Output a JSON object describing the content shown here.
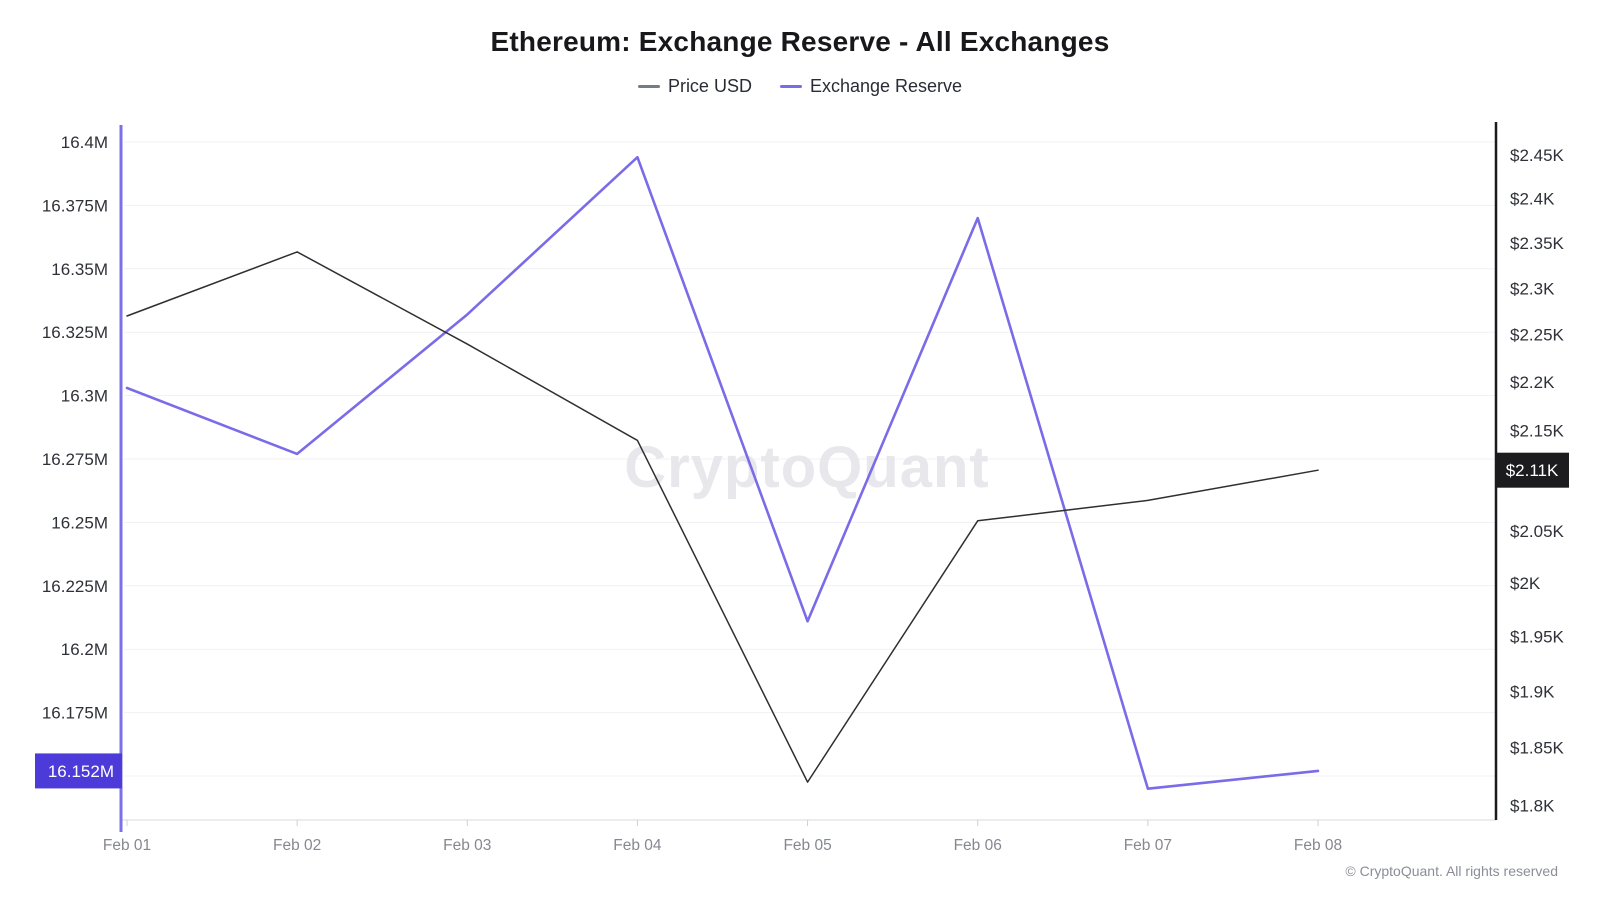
{
  "title": "Ethereum: Exchange Reserve - All Exchanges",
  "legend": [
    {
      "label": "Price USD",
      "color": "#777b82"
    },
    {
      "label": "Exchange Reserve",
      "color": "#7a6be8"
    }
  ],
  "watermark": "CryptoQuant",
  "footer": "© CryptoQuant. All rights reserved",
  "colors": {
    "price_line": "#2f2f33",
    "reserve_line": "#7a6be8",
    "left_axis_line": "#7d70e6",
    "right_axis_line": "#1b1b1f",
    "left_badge_bg": "#4c3bd9",
    "right_badge_bg": "#1c1c1e",
    "badge_text": "#ffffff",
    "gridline": "#f1f1f3",
    "x_axis_line": "#d9dade",
    "tick_mark": "#cfd0d4",
    "axis_label": "#2f3138",
    "x_label": "#85888f",
    "watermark_text": "#e8e8ec"
  },
  "chart_data": {
    "type": "line",
    "categories": [
      "Feb 01",
      "Feb 02",
      "Feb 03",
      "Feb 04",
      "Feb 05",
      "Feb 06",
      "Feb 07",
      "Feb 08"
    ],
    "series": [
      {
        "name": "Price USD",
        "axis": "right",
        "unit": "USD (thousands)",
        "values": [
          2.27,
          2.34,
          2.24,
          2.14,
          1.82,
          2.06,
          2.08,
          2.11
        ]
      },
      {
        "name": "Exchange Reserve",
        "axis": "left",
        "unit": "ETH (millions)",
        "values": [
          16.303,
          16.277,
          16.332,
          16.394,
          16.211,
          16.37,
          16.145,
          16.152
        ]
      }
    ],
    "left_axis": {
      "scale": "linear",
      "ticks": [
        {
          "value": 16.4,
          "label": "16.4M"
        },
        {
          "value": 16.375,
          "label": "16.375M"
        },
        {
          "value": 16.35,
          "label": "16.35M"
        },
        {
          "value": 16.325,
          "label": "16.325M"
        },
        {
          "value": 16.3,
          "label": "16.3M"
        },
        {
          "value": 16.275,
          "label": "16.275M"
        },
        {
          "value": 16.25,
          "label": "16.25M"
        },
        {
          "value": 16.225,
          "label": "16.225M"
        },
        {
          "value": 16.2,
          "label": "16.2M"
        },
        {
          "value": 16.175,
          "label": "16.175M"
        }
      ],
      "extra_gridline_value": 16.15,
      "badge": {
        "value": 16.152,
        "label": "16.152M"
      }
    },
    "right_axis": {
      "scale": "log",
      "ticks": [
        {
          "value": 2.45,
          "label": "$2.45K"
        },
        {
          "value": 2.4,
          "label": "$2.4K"
        },
        {
          "value": 2.35,
          "label": "$2.35K"
        },
        {
          "value": 2.3,
          "label": "$2.3K"
        },
        {
          "value": 2.25,
          "label": "$2.25K"
        },
        {
          "value": 2.2,
          "label": "$2.2K"
        },
        {
          "value": 2.15,
          "label": "$2.15K"
        },
        {
          "value": 2.1,
          "label": "$2.1K"
        },
        {
          "value": 2.05,
          "label": "$2.05K"
        },
        {
          "value": 2.0,
          "label": "$2K"
        },
        {
          "value": 1.95,
          "label": "$1.95K"
        },
        {
          "value": 1.9,
          "label": "$1.9K"
        },
        {
          "value": 1.85,
          "label": "$1.85K"
        },
        {
          "value": 1.8,
          "label": "$1.8K"
        }
      ],
      "badge": {
        "value": 2.11,
        "label": "$2.11K"
      }
    },
    "legend_position": "top",
    "grid": true
  }
}
